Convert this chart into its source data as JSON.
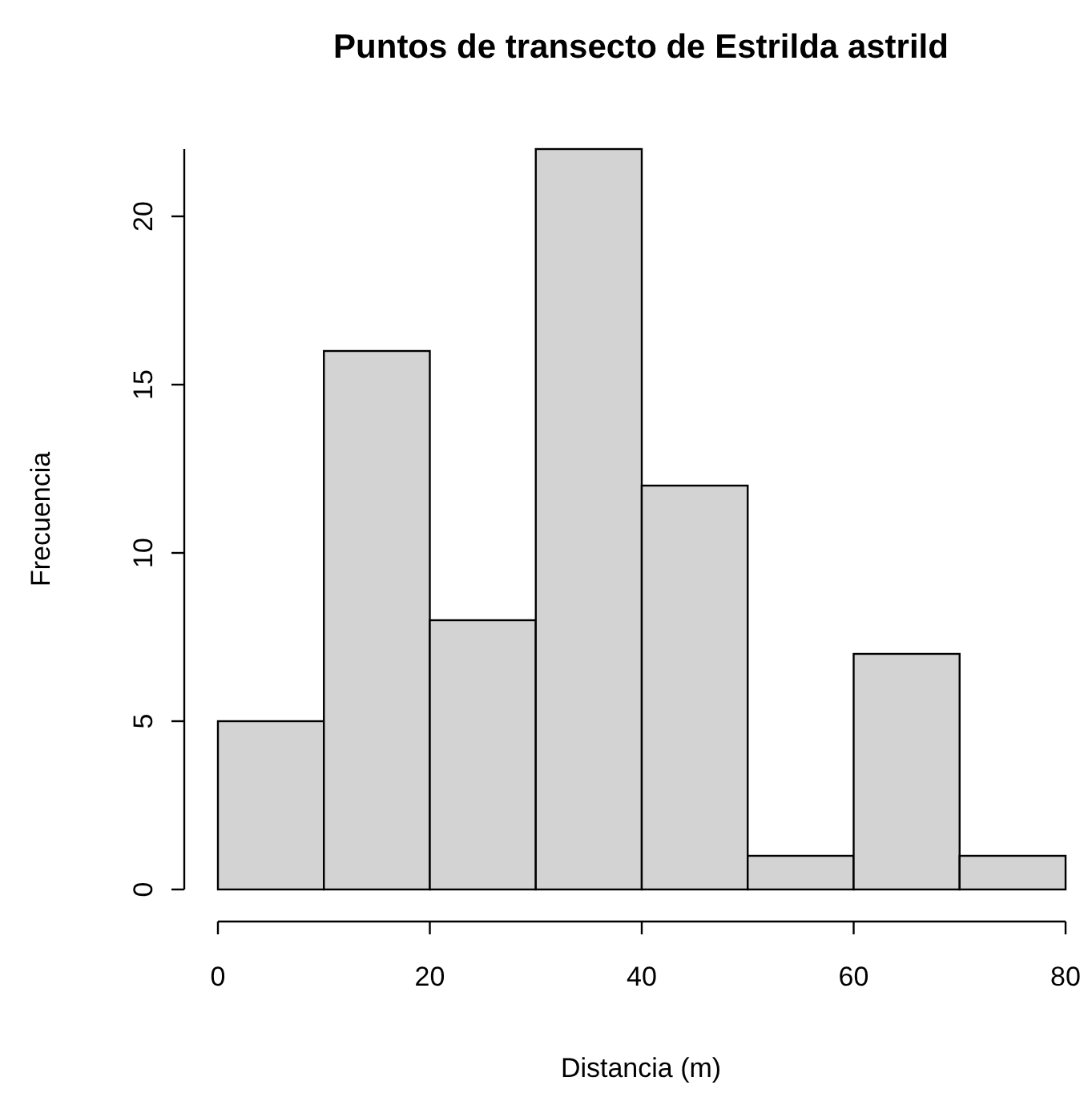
{
  "chart_data": {
    "type": "histogram",
    "title": "Puntos de transecto de Estrilda astrild",
    "xlabel": "Distancia (m)",
    "ylabel": "Frecuencia",
    "bins": [
      0,
      10,
      20,
      30,
      40,
      50,
      60,
      70,
      80
    ],
    "values": [
      5,
      16,
      8,
      22,
      12,
      1,
      7,
      1
    ],
    "color": "#d3d3d3",
    "xlim": [
      0,
      80
    ],
    "xticks": [
      0,
      20,
      40,
      60,
      80
    ],
    "ylim": [
      0,
      22
    ],
    "yticks": [
      0,
      5,
      10,
      15,
      20
    ]
  }
}
